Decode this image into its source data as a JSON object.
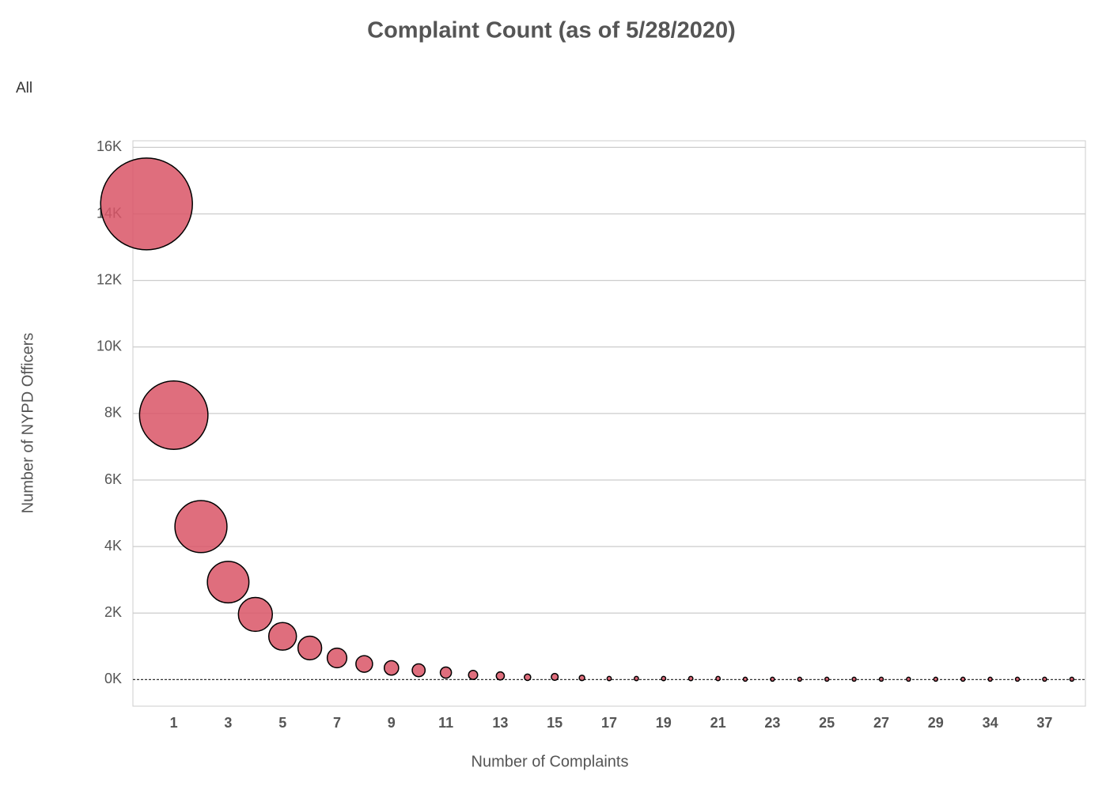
{
  "chart_data": {
    "type": "bubble",
    "title": "Complaint Count (as of 5/28/2020)",
    "filter_label": "All",
    "x_label": "Number of Complaints",
    "y_label": "Number of NYPD Officers",
    "categories": [
      null,
      1,
      null,
      3,
      null,
      5,
      null,
      7,
      null,
      9,
      null,
      11,
      null,
      13,
      null,
      15,
      null,
      17,
      null,
      19,
      null,
      21,
      null,
      23,
      null,
      25,
      null,
      27,
      null,
      29,
      null,
      34,
      null,
      37,
      null
    ],
    "values": [
      14300,
      7950,
      4600,
      2930,
      1960,
      1300,
      950,
      650,
      470,
      350,
      280,
      210,
      140,
      110,
      70,
      80,
      50,
      30,
      30,
      30,
      30,
      30,
      10,
      10,
      10,
      10,
      10,
      10,
      10,
      10,
      10,
      10,
      10,
      10,
      10
    ],
    "color": "#d95566",
    "ylim": [
      -800,
      16200
    ],
    "yticks": [
      {
        "value": 0,
        "label": "0K"
      },
      {
        "value": 2000,
        "label": "2K"
      },
      {
        "value": 4000,
        "label": "4K"
      },
      {
        "value": 6000,
        "label": "6K"
      },
      {
        "value": 8000,
        "label": "8K"
      },
      {
        "value": 10000,
        "label": "10K"
      },
      {
        "value": 12000,
        "label": "12K"
      },
      {
        "value": 14000,
        "label": "14K"
      },
      {
        "value": 16000,
        "label": "16K"
      }
    ],
    "grid": true
  }
}
